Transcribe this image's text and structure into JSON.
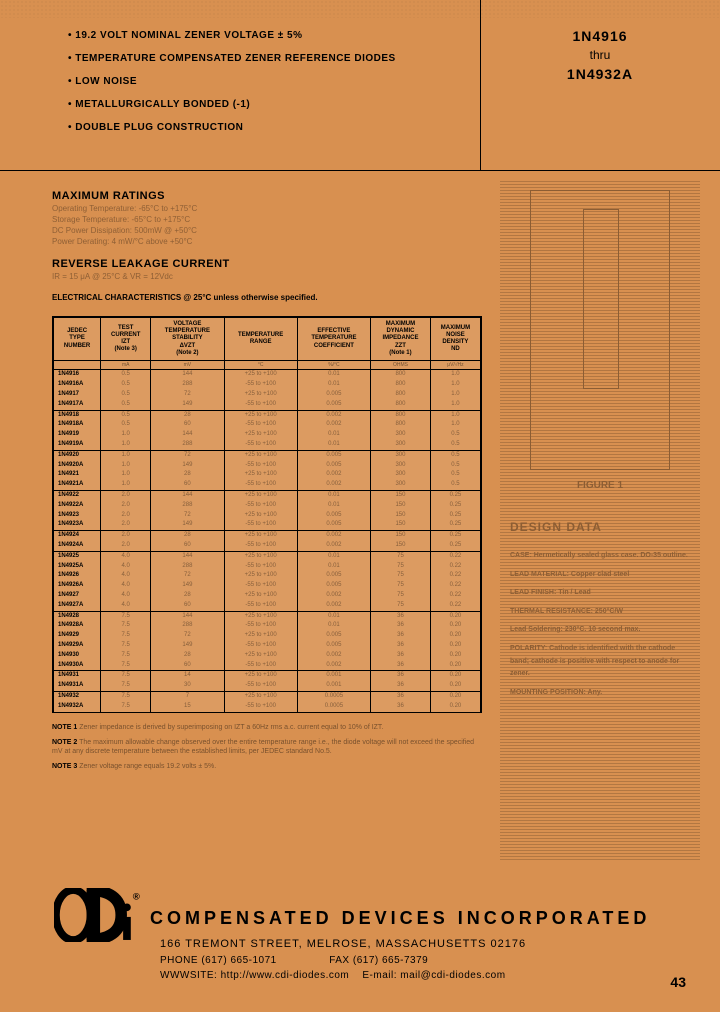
{
  "header": {
    "bullets": [
      "19.2 VOLT NOMINAL ZENER VOLTAGE ± 5%",
      "TEMPERATURE COMPENSATED ZENER REFERENCE DIODES",
      "LOW NOISE",
      "METALLURGICALLY BONDED (-1)",
      "DOUBLE PLUG CONSTRUCTION"
    ],
    "part_from": "1N4916",
    "part_thru": "thru",
    "part_to": "1N4932A"
  },
  "ratings": {
    "title": "MAXIMUM RATINGS",
    "lines": [
      "Operating Temperature: -65°C to +175°C",
      "Storage Temperature: -65°C to +175°C",
      "DC Power Dissipation: 500mW @ +50°C",
      "Power Derating: 4 mW/°C above +50°C"
    ]
  },
  "leakage": {
    "title": "REVERSE LEAKAGE CURRENT",
    "lines": [
      "IR = 15 μA @ 25°C & VR = 12Vdc"
    ]
  },
  "elec_title": "ELECTRICAL CHARACTERISTICS @ 25°C unless otherwise specified.",
  "table": {
    "headers": [
      "JEDEC\nTYPE\nNUMBER",
      "TEST\nCURRENT\nIZT\n(Note 3)",
      "VOLTAGE\nTEMPERATURE\nSTABILITY\nΔVZT\n(Note 2)",
      "TEMPERATURE\nRANGE",
      "EFFECTIVE\nTEMPERATURE\nCOEFFICIENT",
      "MAXIMUM\nDYNAMIC\nIMPEDANCE\nZZT\n(Note 1)",
      "MAXIMUM\nNOISE\nDENSITY\nND"
    ],
    "units": [
      "",
      "mA",
      "mV",
      "°C",
      "%/°C",
      "OHMS",
      "μV/√Hz"
    ],
    "rows": [
      [
        "1N4916",
        "0.5",
        "144",
        "+25 to +100",
        "0.01",
        "800",
        "1.0"
      ],
      [
        "1N4916A",
        "0.5",
        "288",
        "-55 to +100",
        "0.01",
        "800",
        "1.0"
      ],
      [
        "1N4917",
        "0.5",
        "72",
        "+25 to +100",
        "0.005",
        "800",
        "1.0"
      ],
      [
        "1N4917A",
        "0.5",
        "149",
        "-55 to +100",
        "0.005",
        "800",
        "1.0"
      ],
      [
        "1N4918",
        "0.5",
        "28",
        "+25 to +100",
        "0.002",
        "800",
        "1.0"
      ],
      [
        "1N4918A",
        "0.5",
        "60",
        "-55 to +100",
        "0.002",
        "800",
        "1.0"
      ],
      [
        "1N4919",
        "1.0",
        "144",
        "+25 to +100",
        "0.01",
        "300",
        "0.5"
      ],
      [
        "1N4919A",
        "1.0",
        "288",
        "-55 to +100",
        "0.01",
        "300",
        "0.5"
      ],
      [
        "1N4920",
        "1.0",
        "72",
        "+25 to +100",
        "0.005",
        "300",
        "0.5"
      ],
      [
        "1N4920A",
        "1.0",
        "149",
        "-55 to +100",
        "0.005",
        "300",
        "0.5"
      ],
      [
        "1N4921",
        "1.0",
        "28",
        "+25 to +100",
        "0.002",
        "300",
        "0.5"
      ],
      [
        "1N4921A",
        "1.0",
        "60",
        "-55 to +100",
        "0.002",
        "300",
        "0.5"
      ],
      [
        "1N4922",
        "2.0",
        "144",
        "+25 to +100",
        "0.01",
        "150",
        "0.25"
      ],
      [
        "1N4922A",
        "2.0",
        "288",
        "-55 to +100",
        "0.01",
        "150",
        "0.25"
      ],
      [
        "1N4923",
        "2.0",
        "72",
        "+25 to +100",
        "0.005",
        "150",
        "0.25"
      ],
      [
        "1N4923A",
        "2.0",
        "149",
        "-55 to +100",
        "0.005",
        "150",
        "0.25"
      ],
      [
        "1N4924",
        "2.0",
        "28",
        "+25 to +100",
        "0.002",
        "150",
        "0.25"
      ],
      [
        "1N4924A",
        "2.0",
        "60",
        "-55 to +100",
        "0.002",
        "150",
        "0.25"
      ],
      [
        "1N4925",
        "4.0",
        "144",
        "+25 to +100",
        "0.01",
        "75",
        "0.22"
      ],
      [
        "1N4925A",
        "4.0",
        "288",
        "-55 to +100",
        "0.01",
        "75",
        "0.22"
      ],
      [
        "1N4926",
        "4.0",
        "72",
        "+25 to +100",
        "0.005",
        "75",
        "0.22"
      ],
      [
        "1N4926A",
        "4.0",
        "149",
        "-55 to +100",
        "0.005",
        "75",
        "0.22"
      ],
      [
        "1N4927",
        "4.0",
        "28",
        "+25 to +100",
        "0.002",
        "75",
        "0.22"
      ],
      [
        "1N4927A",
        "4.0",
        "60",
        "-55 to +100",
        "0.002",
        "75",
        "0.22"
      ],
      [
        "1N4928",
        "7.5",
        "144",
        "+25 to +100",
        "0.01",
        "36",
        "0.20"
      ],
      [
        "1N4928A",
        "7.5",
        "288",
        "-55 to +100",
        "0.01",
        "36",
        "0.20"
      ],
      [
        "1N4929",
        "7.5",
        "72",
        "+25 to +100",
        "0.005",
        "36",
        "0.20"
      ],
      [
        "1N4929A",
        "7.5",
        "149",
        "-55 to +100",
        "0.005",
        "36",
        "0.20"
      ],
      [
        "1N4930",
        "7.5",
        "28",
        "+25 to +100",
        "0.002",
        "36",
        "0.20"
      ],
      [
        "1N4930A",
        "7.5",
        "60",
        "-55 to +100",
        "0.002",
        "36",
        "0.20"
      ],
      [
        "1N4931",
        "7.5",
        "14",
        "+25 to +100",
        "0.001",
        "36",
        "0.20"
      ],
      [
        "1N4931A",
        "7.5",
        "30",
        "-55 to +100",
        "0.001",
        "36",
        "0.20"
      ],
      [
        "1N4932",
        "7.5",
        "7",
        "+25 to +100",
        "0.0005",
        "36",
        "0.20"
      ],
      [
        "1N4932A",
        "7.5",
        "15",
        "-55 to +100",
        "0.0005",
        "36",
        "0.20"
      ]
    ],
    "group_breaks": [
      4,
      8,
      12,
      16,
      18,
      24,
      30,
      32
    ]
  },
  "notes": [
    {
      "label": "NOTE 1",
      "text": "Zener impedance is derived by superimposing on IZT a 60Hz rms a.c. current equal to 10% of IZT."
    },
    {
      "label": "NOTE 2",
      "text": "The maximum allowable change observed over the entire temperature range i.e., the diode voltage will not exceed the specified mV at any discrete temperature between the established limits, per JEDEC standard No.5."
    },
    {
      "label": "NOTE 3",
      "text": "Zener voltage range equals 19.2 volts ± 5%."
    }
  ],
  "right": {
    "figure_label": "FIGURE 1",
    "design_title": "DESIGN DATA",
    "design_lines": [
      "CASE: Hermetically sealed glass case. DO-35 outline.",
      "LEAD MATERIAL: Copper clad steel",
      "LEAD FINISH: Tin / Lead",
      "THERMAL RESISTANCE: 250°C/W",
      "Lead Soldering: 230°C. 10 second max.",
      "POLARITY: Cathode is identified with the cathode band; cathode is positive with respect to anode for zener.",
      "MOUNTING POSITION: Any."
    ]
  },
  "footer": {
    "company": "COMPENSATED DEVICES INCORPORATED",
    "addr": "166 TREMONT STREET, MELROSE, MASSACHUSETTS 02176",
    "phone": "PHONE (617) 665-1071",
    "fax": "FAX (617) 665-7379",
    "www": "WWWSITE: http://www.cdi-diodes.com",
    "email": "E-mail: mail@cdi-diodes.com",
    "page_num": "43"
  },
  "colors": {
    "bg": "#d89050",
    "text": "#000000"
  }
}
